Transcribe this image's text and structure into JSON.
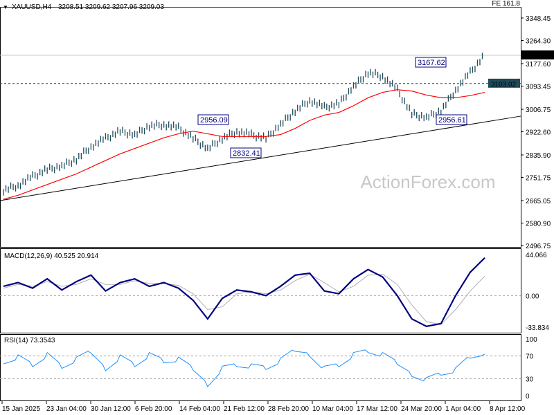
{
  "header": {
    "symbol_label": "XAUUSD,H4",
    "ohlc": "3208.51 3209.62 3207.96 3209.03",
    "fe_label": "FE 161.8"
  },
  "watermark": "ActionForex.com",
  "colors": {
    "bars": "#1f4a5a",
    "ma": "#ff0000",
    "macd": "#000080",
    "signal": "#b0b0b0",
    "rsi": "#1e90ff",
    "trendline": "#000000"
  },
  "chart_data": [
    {
      "type": "line",
      "title": "XAUUSD,H4",
      "ylim": [
        2496.75,
        3348.45
      ],
      "y_ticks": [
        "3348.45",
        "3264.30",
        "3177.60",
        "3093.45",
        "3006.75",
        "2922.60",
        "2835.90",
        "2751.75",
        "2665.05",
        "2580.90",
        "2496.75"
      ],
      "current_price_label": "3209.03",
      "level_label": "3103.02",
      "current_price": 3209.03,
      "level": 3103.02,
      "annotations": [
        {
          "text": "2956.09",
          "value": 2956.09
        },
        {
          "text": "2832.41",
          "value": 2832.41
        },
        {
          "text": "3167.62",
          "value": 3167.62
        },
        {
          "text": "2956.61",
          "value": 2956.61
        }
      ],
      "trendline": {
        "start": 2665,
        "end": 2981
      },
      "series": [
        {
          "values": [
            2704,
            2722,
            2755,
            2781,
            2794,
            2820,
            2867,
            2898,
            2924,
            2911,
            2944,
            2950,
            2937,
            2898,
            2859,
            2898,
            2924,
            2911,
            2898,
            2950,
            3001,
            3040,
            3014,
            3027,
            3092,
            3144,
            3131,
            3079,
            2989,
            2976,
            3001,
            3079,
            3144,
            3209
          ]
        },
        {
          "values": [
            2670,
            2685,
            2705,
            2725,
            2745,
            2765,
            2790,
            2815,
            2840,
            2860,
            2880,
            2900,
            2915,
            2925,
            2915,
            2905,
            2905,
            2905,
            2905,
            2912,
            2935,
            2965,
            2985,
            2995,
            3020,
            3050,
            3070,
            3080,
            3075,
            3060,
            3050,
            3050,
            3058,
            3070
          ]
        }
      ]
    },
    {
      "type": "line",
      "title": "MACD(12,26,9) 40.525 20.914",
      "ylim": [
        -33.834,
        44.066
      ],
      "y_ticks": [
        "44.066",
        "0.00",
        "-33.834"
      ],
      "series": [
        {
          "values": [
            10,
            14,
            8,
            18,
            6,
            15,
            22,
            5,
            14,
            18,
            10,
            14,
            8,
            -5,
            -25,
            -3,
            6,
            4,
            0,
            10,
            22,
            24,
            5,
            2,
            18,
            28,
            20,
            0,
            -25,
            -33,
            -30,
            0,
            25,
            40.5
          ]
        },
        {
          "values": [
            8,
            12,
            10,
            15,
            10,
            12,
            18,
            12,
            12,
            16,
            13,
            13,
            11,
            2,
            -15,
            -12,
            2,
            4,
            2,
            6,
            16,
            23,
            14,
            4,
            10,
            22,
            23,
            12,
            -10,
            -28,
            -31,
            -15,
            5,
            20.9
          ]
        }
      ]
    },
    {
      "type": "line",
      "title": "RSI(14) 73.3543",
      "ylim": [
        0,
        100
      ],
      "y_ticks": [
        "100",
        "70",
        "30",
        "0"
      ],
      "series": [
        {
          "values": [
            62,
            70,
            55,
            72,
            50,
            62,
            75,
            50,
            70,
            55,
            72,
            60,
            62,
            45,
            22,
            50,
            55,
            52,
            48,
            60,
            78,
            75,
            50,
            55,
            72,
            78,
            70,
            55,
            40,
            30,
            40,
            45,
            68,
            73.35
          ]
        }
      ]
    }
  ],
  "x_axis": {
    "tick_labels": [
      "15 Jan 2025",
      "23 Jan 04:00",
      "30 Jan 12:00",
      "6 Feb 20:00",
      "14 Feb 04:00",
      "21 Feb 12:00",
      "28 Feb 20:00",
      "10 Mar 04:00",
      "17 Mar 12:00",
      "24 Mar 20:00",
      "1 Apr 04:00",
      "8 Apr 12:00"
    ]
  }
}
